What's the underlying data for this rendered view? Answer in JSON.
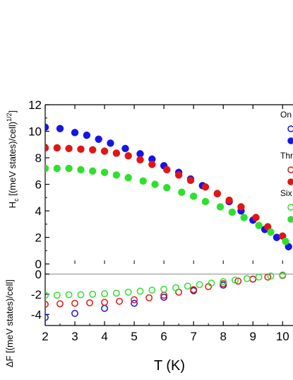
{
  "chart_data": {
    "type": "scatter",
    "xlabel": "T (K)",
    "xlim": [
      2,
      10.35
    ],
    "x_ticks": [
      2,
      3,
      4,
      5,
      6,
      7,
      8,
      9,
      10
    ],
    "x_tick_labels": [
      "2",
      "3",
      "4",
      "5",
      "6",
      "7",
      "8",
      "9",
      "10"
    ],
    "panels": [
      {
        "id": "upper",
        "ylabel_main": "H",
        "ylabel_sub": "c",
        "ylabel_rest": " [(meV states)/cell)",
        "ylabel_sup": "1/2",
        "ylabel_end": "]",
        "ylim": [
          0,
          12
        ],
        "y_ticks": [
          0,
          2,
          4,
          6,
          8,
          10,
          12
        ],
        "y_tick_labels": [
          "0",
          "2",
          "4",
          "6",
          "8",
          "10",
          "12"
        ],
        "series": [
          {
            "marker": "filled",
            "color": "#1515e6",
            "x": [
              2.0,
              2.5,
              3.0,
              3.4,
              3.8,
              4.2,
              4.7,
              5.2,
              5.6,
              6.0,
              6.5,
              6.9,
              7.3,
              7.8,
              8.2,
              8.6,
              9.0,
              9.4,
              9.8,
              10.2
            ],
            "y": [
              10.3,
              10.2,
              9.9,
              9.7,
              9.4,
              9.1,
              8.7,
              8.3,
              7.9,
              7.4,
              6.9,
              6.4,
              5.9,
              5.3,
              4.7,
              4.0,
              3.3,
              2.6,
              2.0,
              1.3
            ]
          },
          {
            "marker": "filled",
            "color": "#e21515",
            "x": [
              2.0,
              2.4,
              2.8,
              3.2,
              3.6,
              4.0,
              4.4,
              4.8,
              5.2,
              5.6,
              6.1,
              6.5,
              6.9,
              7.4,
              7.8,
              8.2,
              8.6,
              9.1,
              9.5,
              10.0
            ],
            "y": [
              8.75,
              8.75,
              8.7,
              8.65,
              8.6,
              8.5,
              8.35,
              8.15,
              7.85,
              7.5,
              7.1,
              6.7,
              6.3,
              5.8,
              5.3,
              4.8,
              4.3,
              3.5,
              2.8,
              2.1
            ]
          },
          {
            "marker": "filled",
            "color": "#2ee02e",
            "x": [
              2.0,
              2.4,
              2.8,
              3.2,
              3.6,
              4.0,
              4.4,
              4.8,
              5.3,
              5.7,
              6.1,
              6.6,
              7.0,
              7.4,
              7.9,
              8.3,
              8.7,
              9.2,
              9.6,
              10.1
            ],
            "y": [
              7.2,
              7.2,
              7.2,
              7.1,
              7.0,
              6.9,
              6.7,
              6.5,
              6.25,
              6.0,
              5.75,
              5.4,
              5.1,
              4.7,
              4.3,
              3.9,
              3.5,
              2.9,
              2.4,
              1.7
            ]
          }
        ],
        "legend": {
          "position": "top-right",
          "groups": [
            {
              "label": "On",
              "color": "#1515e6"
            },
            {
              "label": "Thr",
              "color": "#e21515"
            },
            {
              "label": "Six",
              "color": "#2ee02e"
            }
          ]
        }
      },
      {
        "id": "lower",
        "ylabel": "ΔF [(meV states)/cell]",
        "ylim": [
          -5.1,
          1.0
        ],
        "y_ticks": [
          -4,
          -2,
          0
        ],
        "y_tick_labels": [
          "-4",
          "-2",
          "0"
        ],
        "series": [
          {
            "marker": "open",
            "color": "#1515e6",
            "x": [
              2.0,
              3.0,
              4.0,
              5.0,
              6.0,
              7.0,
              8.0,
              9.0,
              10.0
            ],
            "y": [
              -4.3,
              -3.9,
              -3.4,
              -2.9,
              -2.3,
              -1.65,
              -1.1,
              -0.5,
              -0.1
            ]
          },
          {
            "marker": "open",
            "color": "#e21515",
            "x": [
              2.0,
              2.5,
              3.0,
              3.5,
              4.0,
              4.5,
              5.0,
              5.5,
              6.0,
              6.5,
              7.0,
              7.5,
              8.0,
              8.5,
              9.0,
              9.5,
              10.0
            ],
            "y": [
              -3.0,
              -2.95,
              -2.9,
              -2.85,
              -2.8,
              -2.7,
              -2.55,
              -2.35,
              -2.1,
              -1.8,
              -1.55,
              -1.25,
              -0.95,
              -0.7,
              -0.5,
              -0.3,
              -0.15
            ]
          },
          {
            "marker": "open",
            "color": "#2ee02e",
            "x": [
              2.0,
              2.4,
              2.8,
              3.2,
              3.6,
              4.0,
              4.4,
              4.8,
              5.2,
              5.6,
              6.0,
              6.4,
              6.8,
              7.2,
              7.6,
              8.0,
              8.4,
              8.8,
              9.2,
              9.6,
              10.0
            ],
            "y": [
              -2.1,
              -2.1,
              -2.05,
              -2.05,
              -2.0,
              -1.95,
              -1.9,
              -1.8,
              -1.7,
              -1.6,
              -1.5,
              -1.35,
              -1.2,
              -1.05,
              -0.9,
              -0.75,
              -0.6,
              -0.45,
              -0.3,
              -0.2,
              -0.1
            ]
          }
        ]
      }
    ]
  }
}
